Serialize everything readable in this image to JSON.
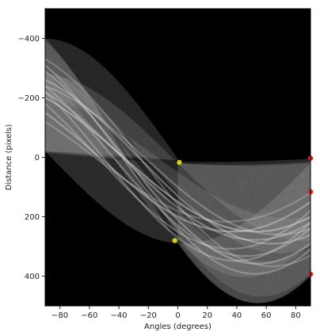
{
  "chart_data": {
    "type": "heatmap",
    "title": "",
    "xlabel": "Angles (degrees)",
    "ylabel": "Distance (pixels)",
    "xlim": [
      -90,
      90
    ],
    "ylim": [
      -500,
      500
    ],
    "y_inverted": true,
    "x_ticks": [
      -80,
      -60,
      -40,
      -20,
      0,
      20,
      40,
      60,
      80
    ],
    "x_tick_labels": [
      "−80",
      "−60",
      "−40",
      "−20",
      "0",
      "20",
      "40",
      "60",
      "80"
    ],
    "y_ticks": [
      -400,
      -200,
      0,
      200,
      400
    ],
    "y_tick_labels": [
      "−400",
      "−200",
      "0",
      "200",
      "400"
    ],
    "grid": false,
    "colormap": "gray",
    "peak_colors": {
      "yellow": "#d4cc1a",
      "red": "#e02020"
    },
    "peaks": [
      {
        "angle": 1,
        "distance": 17,
        "color": "yellow"
      },
      {
        "angle": -2,
        "distance": 280,
        "color": "yellow"
      },
      {
        "angle": 90,
        "distance": 3,
        "color": "red"
      },
      {
        "angle": 90,
        "distance": 116,
        "color": "red"
      },
      {
        "angle": 90,
        "distance": 393,
        "color": "red"
      }
    ]
  }
}
